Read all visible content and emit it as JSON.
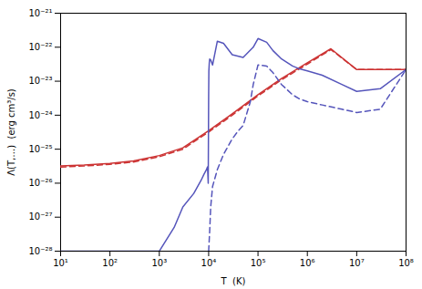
{
  "chart_data": {
    "type": "line",
    "xlabel": "T  (K)",
    "ylabel": "Λ(T,…)  (erg cm³/s)",
    "log": true,
    "grid": false,
    "xlim": [
      10,
      100000000
    ],
    "ylim": [
      1e-28,
      1e-21
    ],
    "xticks": [
      {
        "value": 10,
        "label": "10¹"
      },
      {
        "value": 100,
        "label": "10²"
      },
      {
        "value": 1000,
        "label": "10³"
      },
      {
        "value": 10000,
        "label": "10⁴"
      },
      {
        "value": 100000,
        "label": "10⁵"
      },
      {
        "value": 1000000,
        "label": "10⁶"
      },
      {
        "value": 10000000,
        "label": "10⁷"
      },
      {
        "value": 100000000,
        "label": "10⁸"
      }
    ],
    "yticks": [
      {
        "value": 1e-28,
        "label": "10⁻²⁸"
      },
      {
        "value": 1e-27,
        "label": "10⁻²⁷"
      },
      {
        "value": 1e-26,
        "label": "10⁻²⁶"
      },
      {
        "value": 1e-25,
        "label": "10⁻²⁵"
      },
      {
        "value": 1e-24,
        "label": "10⁻²⁴"
      },
      {
        "value": 1e-23,
        "label": "10⁻²³"
      },
      {
        "value": 1e-22,
        "label": "10⁻²²"
      },
      {
        "value": 1e-21,
        "label": "10⁻²¹"
      }
    ],
    "series": [
      {
        "color": "#cc3333",
        "line_style": "dashed",
        "x": [
          10,
          30,
          100,
          300,
          1000,
          3000,
          10000,
          30000,
          100000,
          300000,
          1000000,
          3000000,
          10000000,
          30000000,
          100000000
        ],
        "values": [
          3e-26,
          3.2e-26,
          3.6e-26,
          4.2e-26,
          6e-26,
          1e-25,
          3.2e-25,
          1e-24,
          3.7e-24,
          1.1e-23,
          3.2e-23,
          8.5e-23,
          2.2e-23,
          2.2e-23,
          2.2e-23
        ]
      },
      {
        "color": "#cc3333",
        "line_style": "solid",
        "x": [
          10,
          30,
          100,
          300,
          1000,
          3000,
          10000,
          30000,
          100000,
          300000,
          1000000,
          3000000,
          10000000,
          30000000,
          100000000
        ],
        "values": [
          3.2e-26,
          3.4e-26,
          3.8e-26,
          4.5e-26,
          6.5e-26,
          1.1e-25,
          3.5e-25,
          1.1e-24,
          4e-24,
          1.2e-23,
          3.5e-23,
          9e-23,
          2.2e-23,
          2.2e-23,
          2.2e-23
        ]
      },
      {
        "color": "#5555bb",
        "line_style": "dashed",
        "x": [
          10000,
          10500,
          11000,
          12000,
          15000,
          20000,
          30000,
          40000,
          50000,
          70000,
          80000,
          100000,
          150000,
          200000,
          300000,
          500000,
          700000,
          1000000,
          2000000,
          5000000,
          10000000,
          30000000,
          100000000
        ],
        "values": [
          1e-28,
          4e-28,
          2e-27,
          8e-27,
          2.5e-26,
          7e-26,
          2e-25,
          3.5e-25,
          5e-25,
          2.5e-24,
          8e-24,
          3e-23,
          2.8e-23,
          1.8e-23,
          8e-24,
          4e-24,
          3e-24,
          2.5e-24,
          2e-24,
          1.5e-24,
          1.2e-24,
          1.5e-24,
          2.2e-23
        ]
      },
      {
        "color": "#5555bb",
        "line_style": "solid",
        "x": [
          10,
          15,
          20,
          30,
          50,
          80,
          100,
          150,
          200,
          300,
          500,
          700,
          1000,
          2000,
          3000,
          5000,
          7000,
          8000,
          9000,
          9500,
          9800,
          10000,
          10100,
          10300,
          10500,
          11000,
          12000,
          15000,
          20000,
          30000,
          50000,
          80000,
          100000,
          150000,
          200000,
          300000,
          500000,
          700000,
          1000000,
          2000000,
          5000000,
          10000000,
          30000000,
          100000000
        ],
        "values": [
          1e-28,
          1e-28,
          1e-28,
          1e-28,
          1e-28,
          1e-28,
          1e-28,
          1e-28,
          1e-28,
          1e-28,
          1e-28,
          1e-28,
          1e-28,
          5e-28,
          2e-27,
          5e-27,
          1.2e-26,
          1.8e-26,
          2.5e-26,
          3e-26,
          1e-26,
          4e-24,
          2e-23,
          3.5e-23,
          4.5e-23,
          4.2e-23,
          3e-23,
          1.5e-22,
          1.3e-22,
          6e-23,
          5e-23,
          1e-22,
          1.8e-22,
          1.4e-22,
          8e-23,
          4.5e-23,
          2.8e-23,
          2.3e-23,
          2e-23,
          1.5e-23,
          8e-24,
          5e-24,
          6e-24,
          2.2e-23
        ]
      }
    ]
  }
}
